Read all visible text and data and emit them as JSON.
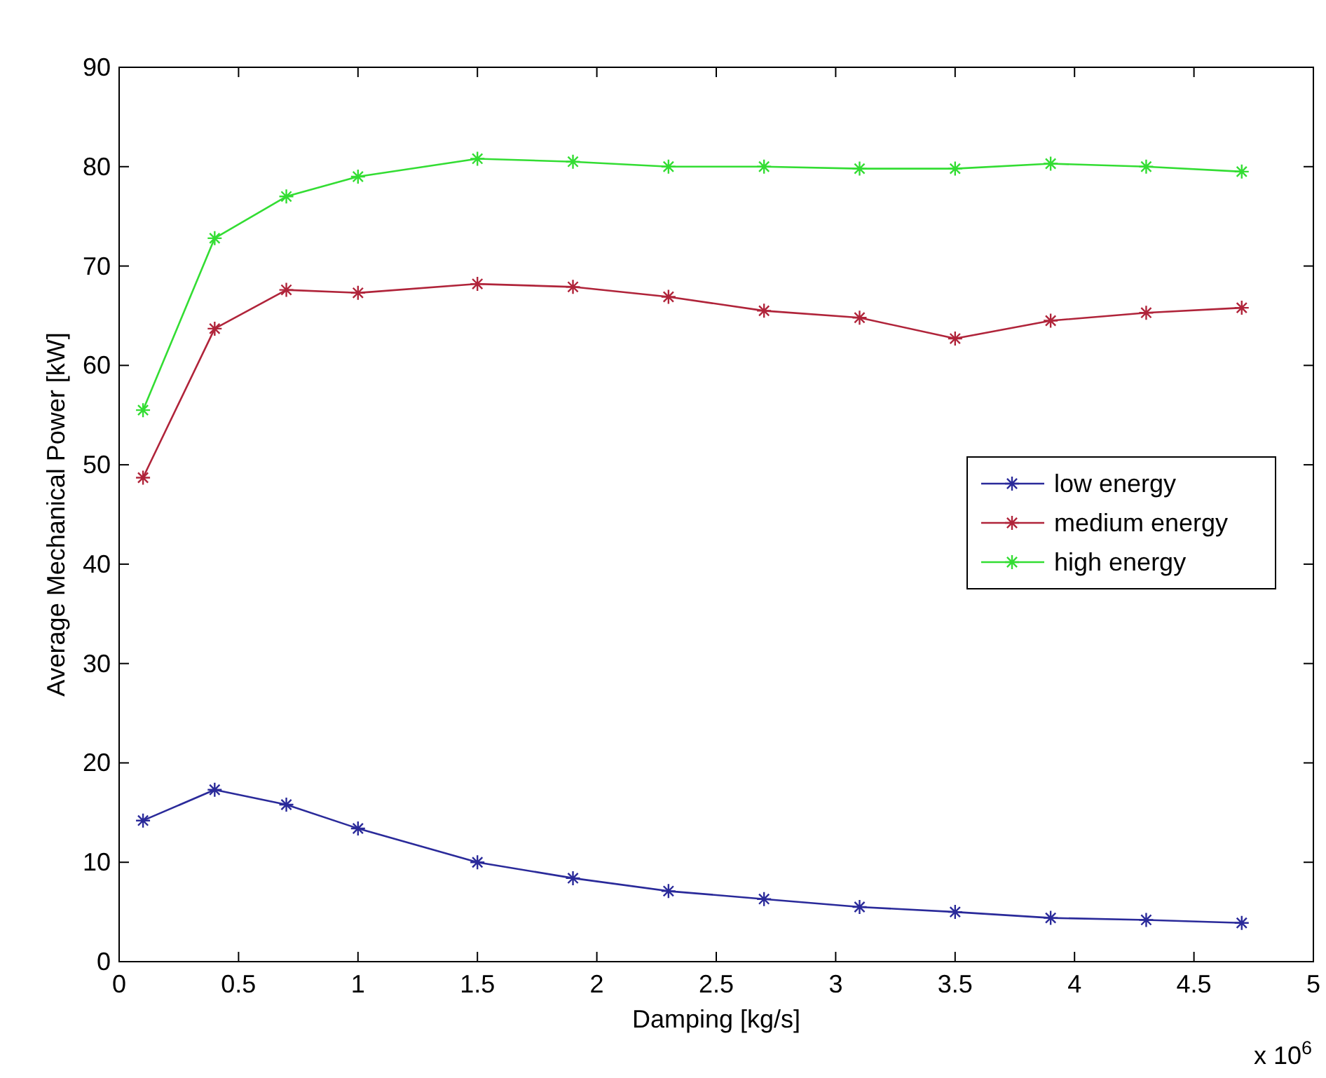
{
  "chart_data": {
    "type": "line",
    "xlabel": "Damping [kg/s]",
    "ylabel": "Average Mechanical Power [kW]",
    "x": [
      0.1,
      0.4,
      0.7,
      1,
      1.5,
      1.9,
      2.3,
      2.7,
      3.1,
      3.5,
      3.9,
      4.3,
      4.7
    ],
    "series": [
      {
        "name": "low energy",
        "color": "#2a2a9a",
        "values": [
          14.2,
          17.3,
          15.8,
          13.4,
          10,
          8.4,
          7.1,
          6.3,
          5.5,
          5,
          4.4,
          4.2,
          3.9
        ]
      },
      {
        "name": "medium energy",
        "color": "#b0243a",
        "values": [
          48.7,
          63.7,
          67.6,
          67.3,
          68.2,
          67.9,
          66.9,
          65.5,
          64.8,
          62.7,
          64.5,
          65.3,
          65.8
        ]
      },
      {
        "name": "high energy",
        "color": "#33dd33",
        "values": [
          55.5,
          72.8,
          77,
          79,
          80.8,
          80.5,
          80,
          80,
          79.8,
          79.8,
          80.3,
          80,
          79.5
        ]
      }
    ],
    "xlim": [
      0,
      5
    ],
    "xticks": [
      0,
      0.5,
      1,
      1.5,
      2,
      2.5,
      3,
      3.5,
      4,
      4.5,
      5
    ],
    "ylim": [
      0,
      90
    ],
    "yticks": [
      0,
      10,
      20,
      30,
      40,
      50,
      60,
      70,
      80,
      90
    ],
    "annotations": [
      "x 10$^{6}$"
    ],
    "legend": "right",
    "marker": "cross",
    "line_style": "solid",
    "grid": false
  }
}
